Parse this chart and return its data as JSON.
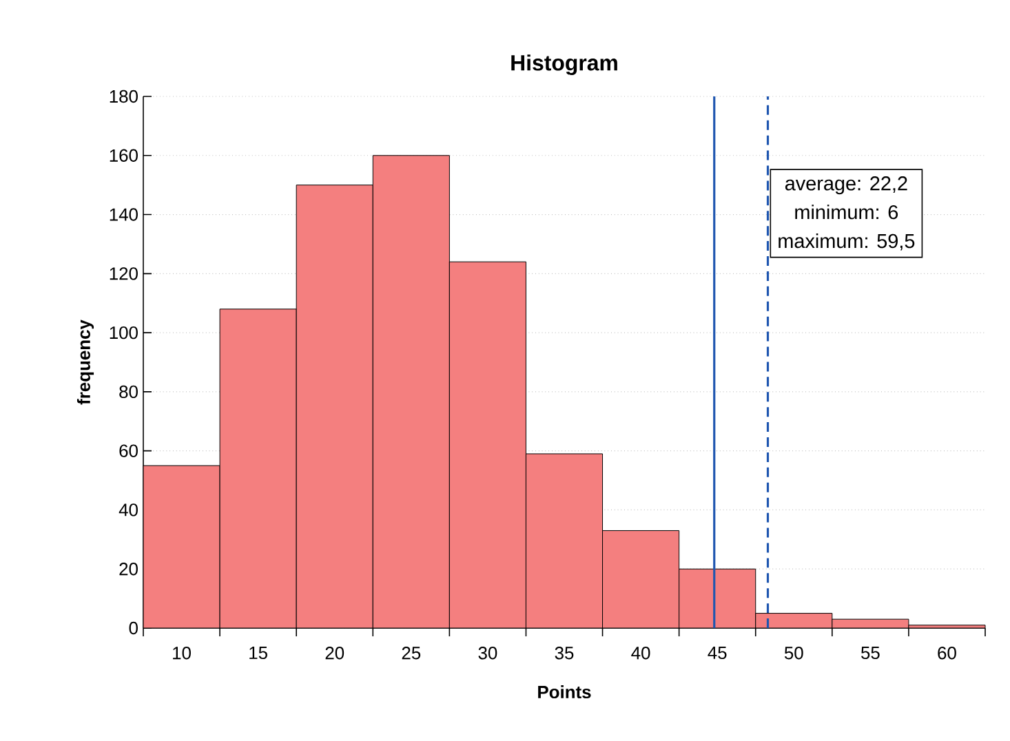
{
  "chart_data": {
    "type": "histogram",
    "title": "Histogram",
    "xlabel": "Points",
    "ylabel": "frequency",
    "bins": [
      7.5,
      12.5,
      17.5,
      22.5,
      27.5,
      32.5,
      37.5,
      42.5,
      47.5,
      52.5,
      57.5,
      62.5
    ],
    "values": [
      55,
      108,
      150,
      160,
      124,
      59,
      33,
      20,
      5,
      3,
      1
    ],
    "color": "#f47f7f",
    "xlim": [
      7.5,
      62.5
    ],
    "ylim": [
      0,
      180
    ],
    "xticks": [
      10,
      15,
      20,
      25,
      30,
      35,
      40,
      45,
      50,
      55,
      60,
      {
        "value": 7.5,
        "label": null
      },
      {
        "value": 12.5,
        "label": null
      },
      {
        "value": 17.5,
        "label": null
      },
      {
        "value": 22.5,
        "label": null
      },
      {
        "value": 27.5,
        "label": null
      },
      {
        "value": 32.5,
        "label": null
      },
      {
        "value": 37.5,
        "label": null
      },
      {
        "value": 42.5,
        "label": null
      },
      {
        "value": 47.5,
        "label": null
      },
      {
        "value": 52.5,
        "label": null
      },
      {
        "value": 57.5,
        "label": null
      },
      {
        "value": 62.5,
        "label": null
      }
    ],
    "yticks": [
      0,
      20,
      40,
      60,
      80,
      100,
      120,
      140,
      160,
      180
    ],
    "grid": "y",
    "ref_lines": [
      {
        "axis": "x",
        "value": 44.8,
        "color": "#1f56b0",
        "line_style": "solid"
      },
      {
        "axis": "x",
        "value": 48.3,
        "color": "#1f56b0",
        "line_style": "dashed"
      }
    ],
    "annotations": [
      "average: 22,2",
      "minimum: 6",
      "maximum: 59,5"
    ]
  }
}
